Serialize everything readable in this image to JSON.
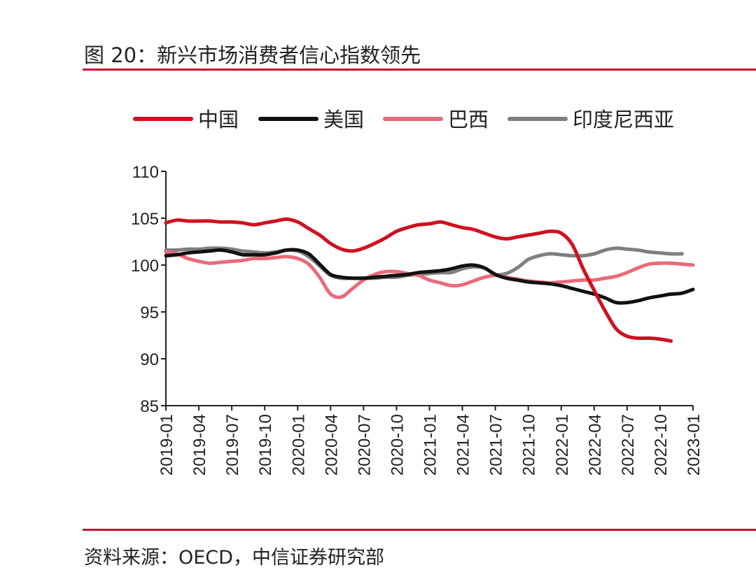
{
  "title": "图 20：新兴市场消费者信心指数领先",
  "source": "资料来源：OECD，中信证券研究部",
  "chart_data": {
    "type": "line",
    "title": "图 20：新兴市场消费者信心指数领先",
    "xlabel": "",
    "ylabel": "",
    "ylim": [
      85,
      110
    ],
    "yticks": [
      "85",
      "90",
      "95",
      "100",
      "105",
      "110"
    ],
    "xtick_labels": [
      "2019-01",
      "2019-04",
      "2019-07",
      "2019-10",
      "2020-01",
      "2020-04",
      "2020-07",
      "2020-10",
      "2021-01",
      "2021-04",
      "2021-07",
      "2021-10",
      "2022-01",
      "2022-04",
      "2022-07",
      "2022-10",
      "2023-01"
    ],
    "x_start": "2019-01",
    "x_end": "2023-01",
    "legend_position": "top",
    "grid": false,
    "series": [
      {
        "name": "中国",
        "color": "#d0101e",
        "values": [
          104.5,
          104.8,
          104.7,
          104.7,
          104.7,
          104.6,
          104.6,
          104.5,
          104.3,
          104.5,
          104.7,
          104.9,
          104.6,
          103.9,
          103.2,
          102.3,
          101.7,
          101.5,
          101.8,
          102.3,
          102.9,
          103.6,
          104.0,
          104.3,
          104.4,
          104.6,
          104.3,
          104.0,
          103.8,
          103.4,
          103.0,
          102.8,
          103.0,
          103.2,
          103.4,
          103.6,
          103.4,
          102.2,
          99.6,
          97.3,
          95.1,
          93.2,
          92.4,
          92.2,
          92.2,
          92.1,
          91.9,
          null,
          null
        ]
      },
      {
        "name": "美国",
        "color": "#111111",
        "values": [
          101.0,
          101.1,
          101.3,
          101.4,
          101.5,
          101.6,
          101.4,
          101.1,
          101.1,
          101.1,
          101.3,
          101.6,
          101.6,
          101.2,
          100.1,
          99.0,
          98.7,
          98.6,
          98.6,
          98.7,
          98.8,
          98.9,
          99.0,
          99.2,
          99.3,
          99.4,
          99.6,
          99.9,
          100.0,
          99.7,
          99.0,
          98.6,
          98.4,
          98.2,
          98.1,
          98.0,
          97.8,
          97.5,
          97.2,
          96.9,
          96.5,
          96.0,
          96.0,
          96.2,
          96.5,
          96.7,
          96.9,
          97.0,
          97.4
        ]
      },
      {
        "name": "巴西",
        "color": "#ea6a78",
        "values": [
          101.4,
          101.2,
          100.7,
          100.4,
          100.2,
          100.3,
          100.4,
          100.5,
          100.7,
          100.7,
          100.8,
          100.9,
          100.7,
          100.1,
          98.7,
          96.9,
          96.6,
          97.5,
          98.4,
          99.0,
          99.3,
          99.3,
          99.1,
          98.9,
          98.4,
          98.1,
          97.8,
          97.9,
          98.3,
          98.7,
          98.9,
          98.7,
          98.5,
          98.3,
          98.2,
          98.1,
          98.2,
          98.3,
          98.4,
          98.4,
          98.6,
          98.8,
          99.2,
          99.7,
          100.1,
          100.2,
          100.2,
          100.1,
          100.0
        ]
      },
      {
        "name": "印度尼西亚",
        "color": "#7f7f7f",
        "values": [
          101.6,
          101.6,
          101.7,
          101.7,
          101.8,
          101.8,
          101.7,
          101.5,
          101.4,
          101.3,
          101.4,
          101.6,
          101.5,
          100.9,
          99.9,
          98.9,
          98.6,
          98.6,
          98.6,
          98.6,
          98.7,
          98.7,
          98.9,
          99.0,
          99.1,
          99.2,
          99.2,
          99.6,
          99.8,
          99.7,
          99.0,
          99.1,
          99.7,
          100.6,
          101.0,
          101.2,
          101.1,
          101.0,
          101.0,
          101.2,
          101.6,
          101.8,
          101.7,
          101.6,
          101.4,
          101.3,
          101.2,
          101.2,
          null
        ]
      }
    ]
  }
}
